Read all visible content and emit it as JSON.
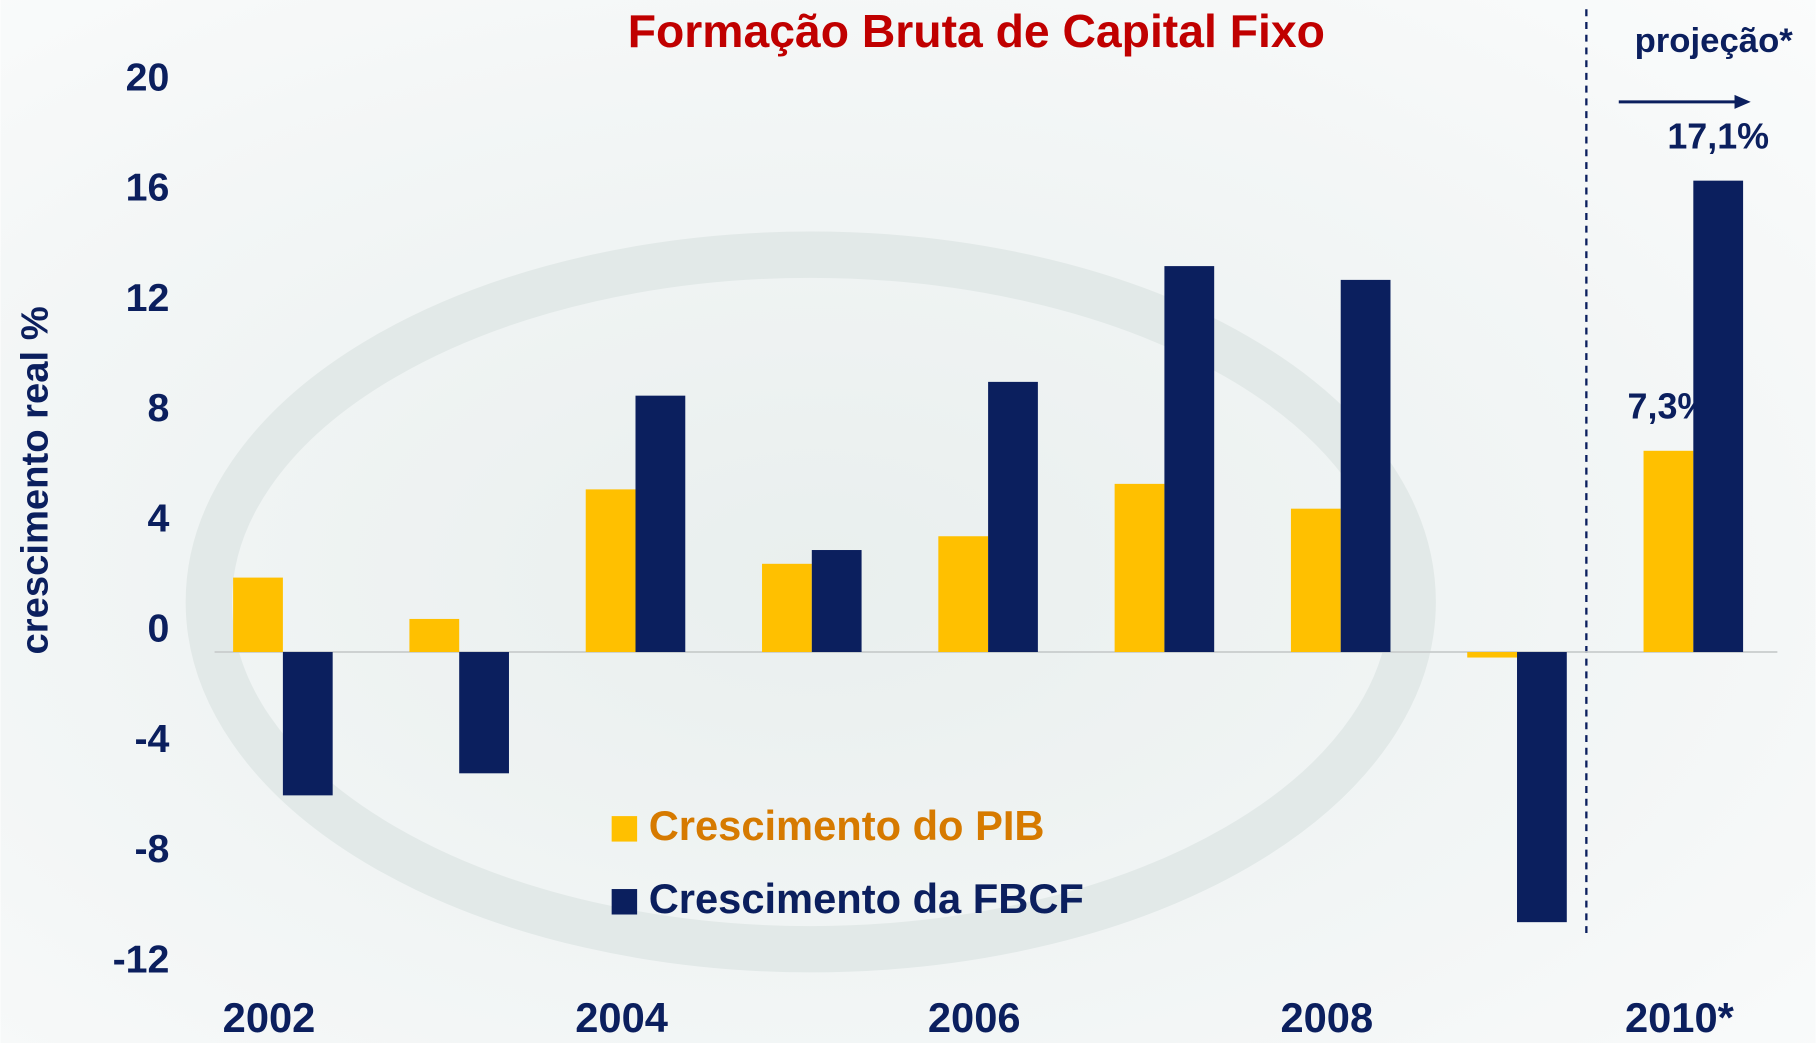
{
  "chart_data": {
    "type": "bar",
    "title": "Formação Bruta de Capital Fixo",
    "y_label": "crescimento real %",
    "annotation": "projeção*",
    "categories": [
      "2002",
      null,
      "2004",
      null,
      "2006",
      null,
      "2008",
      null,
      "2010*"
    ],
    "series": [
      {
        "name": "Crescimento do PIB",
        "color": "#FFC000",
        "text_color": "#D67A00",
        "values": [
          2.7,
          1.2,
          5.9,
          3.2,
          4.2,
          6.1,
          5.2,
          -0.2,
          7.3
        ],
        "value_labels": [
          null,
          null,
          null,
          null,
          null,
          null,
          null,
          null,
          "7,3%"
        ]
      },
      {
        "name": "Crescimento da FBCF",
        "color": "#0B1F5E",
        "text_color": "#0B1F5E",
        "values": [
          -5.2,
          -4.4,
          9.3,
          3.7,
          9.8,
          14.0,
          13.5,
          -9.8,
          17.1
        ],
        "value_labels": [
          null,
          null,
          null,
          null,
          null,
          null,
          null,
          null,
          "17,1%"
        ]
      }
    ],
    "ylim": [
      -12,
      20
    ],
    "yticks": [
      -12,
      -8,
      -4,
      0,
      4,
      8,
      12,
      16,
      20
    ],
    "grid": false
  }
}
